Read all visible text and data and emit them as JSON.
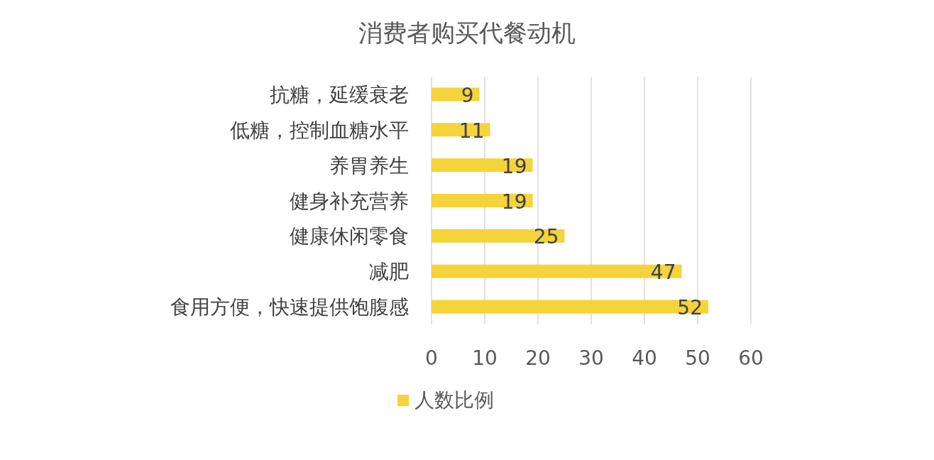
{
  "chart_data": {
    "type": "bar",
    "orientation": "horizontal",
    "title": "消费者购买代餐动机",
    "categories": [
      "抗糖，延缓衰老",
      "低糖，控制血糖水平",
      "养胃养生",
      "健身补充营养",
      "健康休闲零食",
      "减肥",
      "食用方便，快速提供饱腹感"
    ],
    "series": [
      {
        "name": "人数比例",
        "color": "#f5d33b",
        "values": [
          9,
          11,
          19,
          19,
          25,
          47,
          52
        ]
      }
    ],
    "xlim": [
      0,
      60
    ],
    "xticks": [
      0,
      10,
      20,
      30,
      40,
      50,
      60
    ],
    "grid": "x",
    "legend": "bottom",
    "data_labels": true
  }
}
